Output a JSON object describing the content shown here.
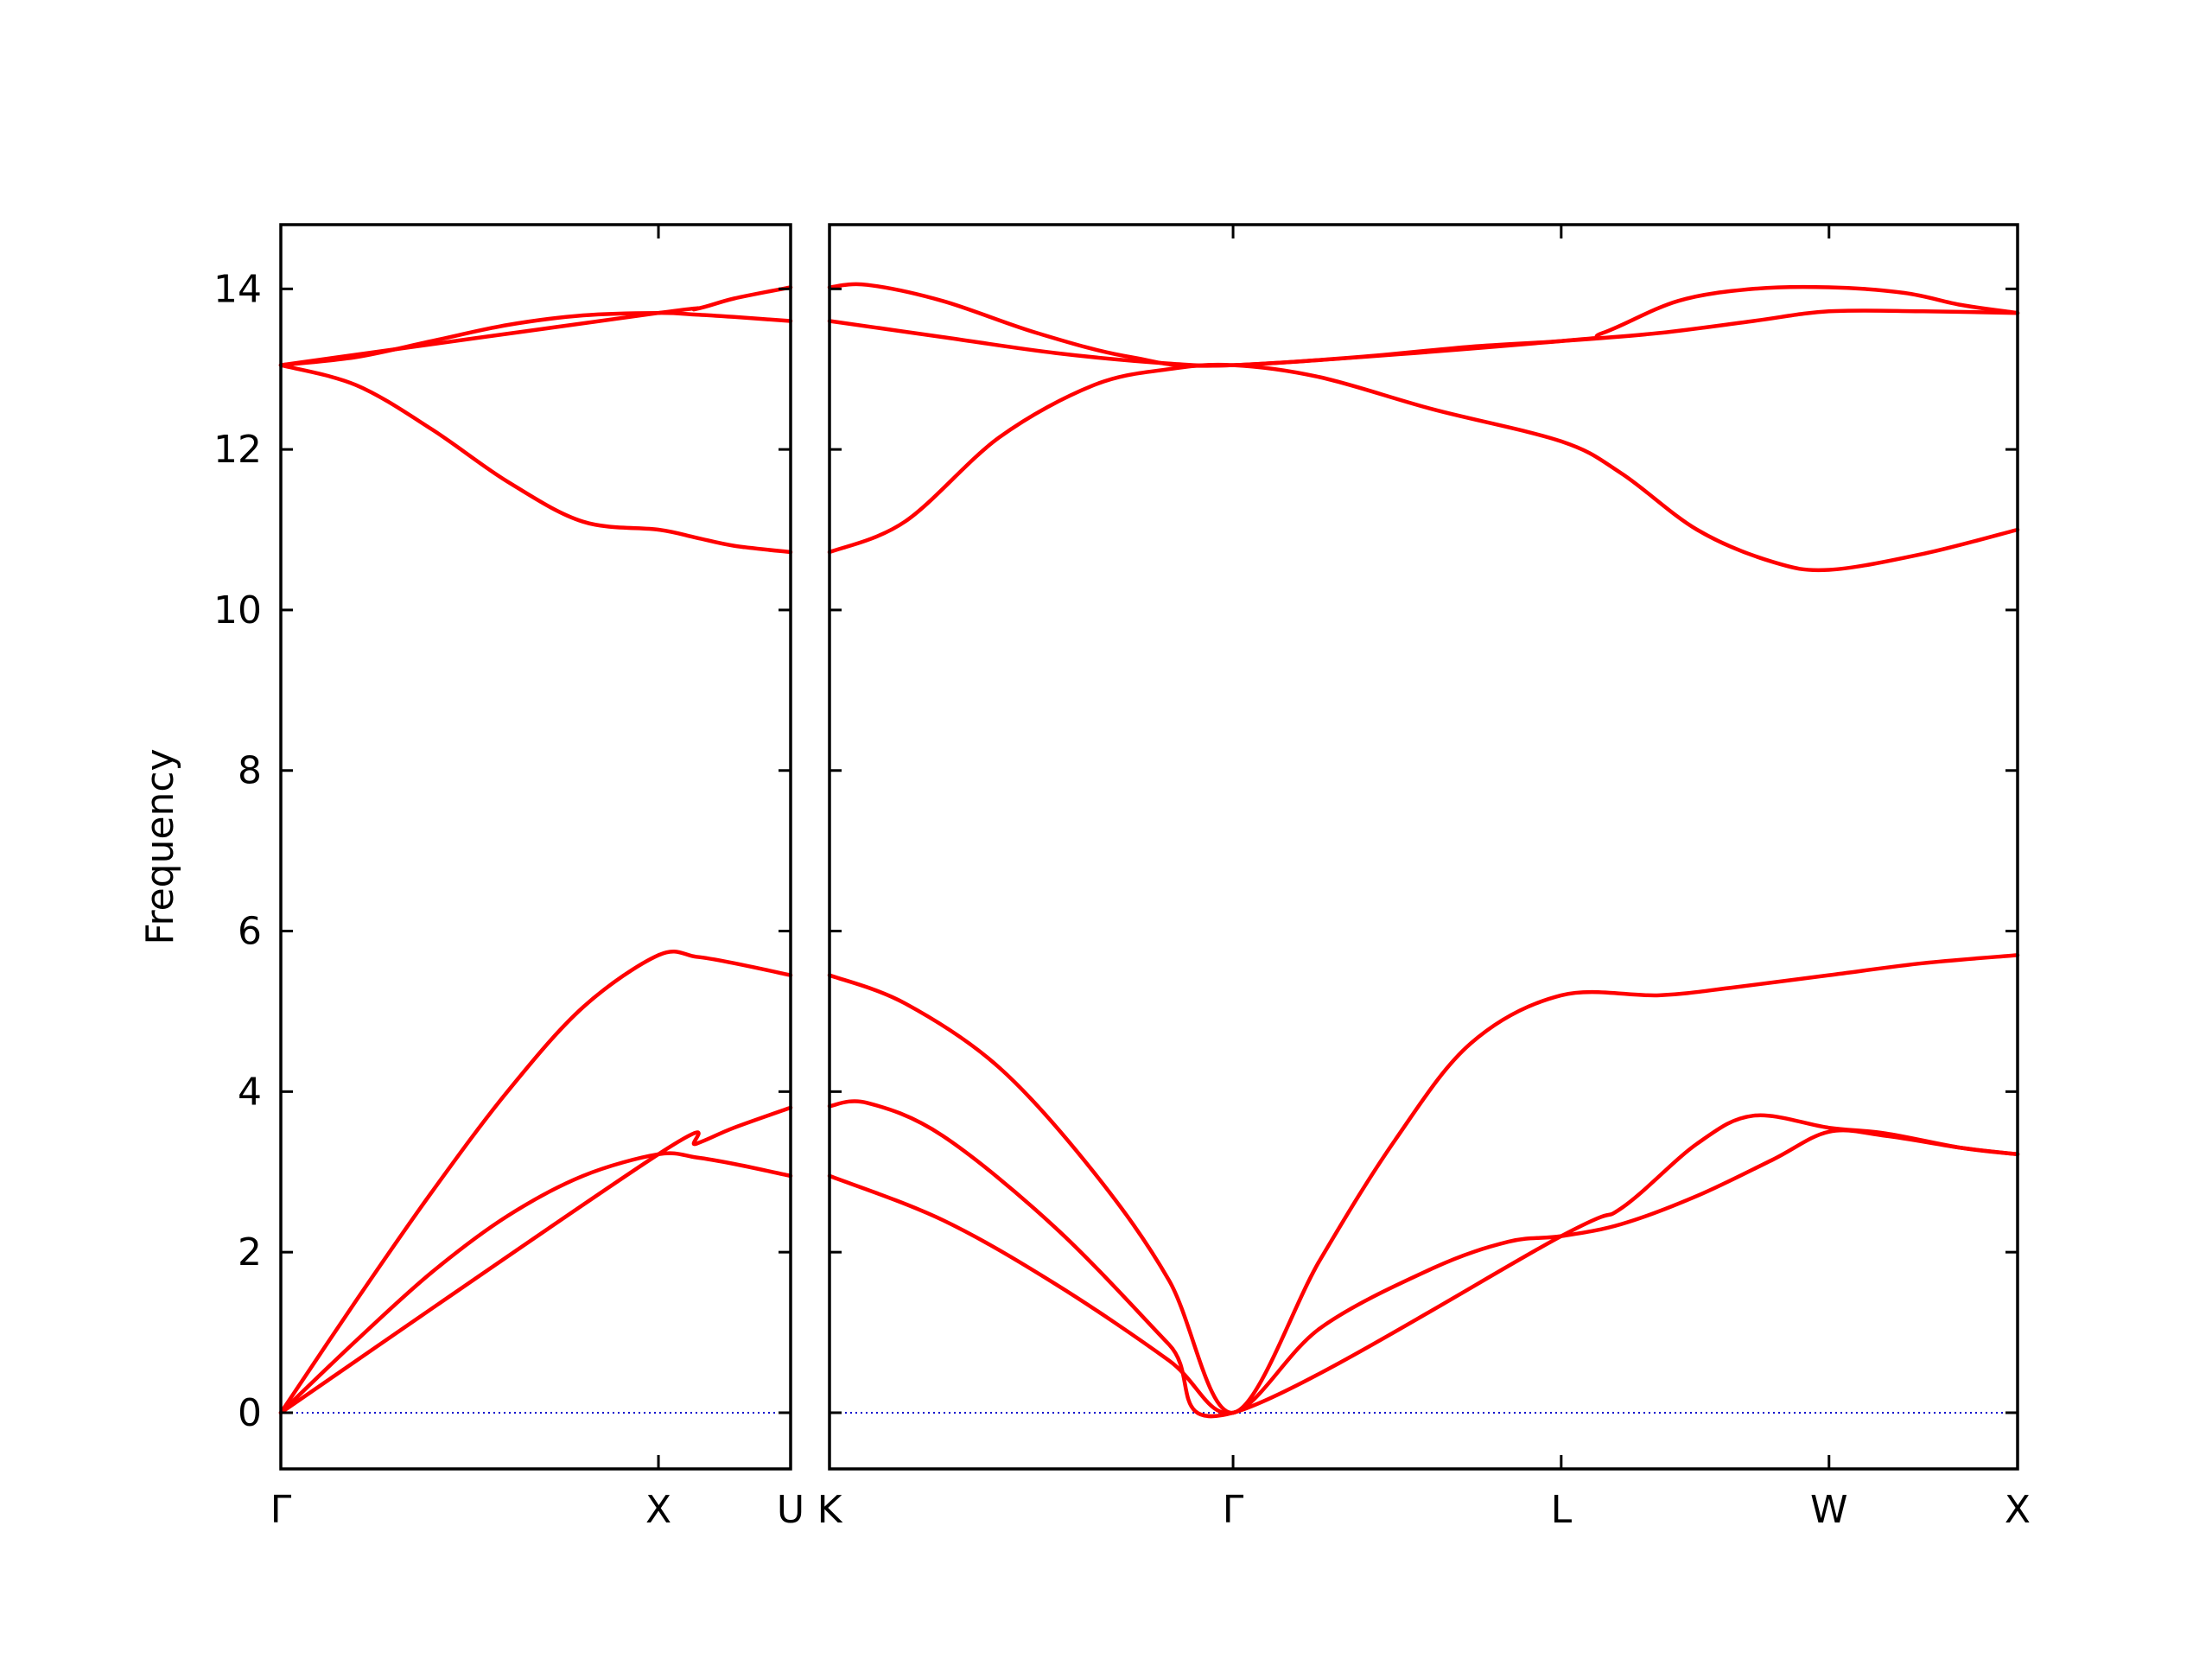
{
  "chart_data": {
    "type": "line",
    "title": "",
    "ylabel": "Frequency",
    "xlabel": "",
    "ylim": [
      -0.7,
      14.8
    ],
    "yticks": [
      0,
      2,
      4,
      6,
      8,
      10,
      12,
      14
    ],
    "grid": false,
    "legend": "none",
    "colors": {
      "band": "#ff0000",
      "zero_line": "#0000cc",
      "axes": "#000000"
    },
    "panels": [
      {
        "name": "Γ-X-U",
        "xlim": [
          0,
          1.35
        ],
        "xticks": [
          {
            "x": 0,
            "label": "Γ"
          },
          {
            "x": 1.0,
            "label": "X"
          },
          {
            "x": 1.35,
            "label": "U"
          }
        ],
        "series": [
          {
            "x": [
              0,
              0.2,
              0.4,
              0.6,
              0.8,
              1.0,
              1.1,
              1.2,
              1.35
            ],
            "y": [
              0,
              0.9,
              1.75,
              2.45,
              2.95,
              3.22,
              3.18,
              3.1,
              2.95
            ]
          },
          {
            "x": [
              0,
              1.0,
              1.1,
              1.2,
              1.35
            ],
            "y": [
              0,
              3.22,
              3.35,
              3.55,
              3.8
            ]
          },
          {
            "x": [
              0,
              0.2,
              0.4,
              0.6,
              0.8,
              1.0,
              1.1,
              1.2,
              1.35
            ],
            "y": [
              0,
              1.4,
              2.75,
              4.0,
              5.05,
              5.7,
              5.68,
              5.6,
              5.45
            ]
          },
          {
            "x": [
              0,
              0.2,
              0.4,
              0.6,
              0.8,
              1.0,
              1.1,
              1.2,
              1.35
            ],
            "y": [
              13.05,
              12.8,
              12.25,
              11.6,
              11.1,
              11.0,
              10.9,
              10.8,
              10.72
            ]
          },
          {
            "x": [
              0,
              0.2,
              0.4,
              0.6,
              0.8,
              1.0,
              1.1,
              1.2,
              1.35
            ],
            "y": [
              13.05,
              13.15,
              13.35,
              13.55,
              13.67,
              13.7,
              13.68,
              13.65,
              13.6
            ]
          },
          {
            "x": [
              0,
              1.0,
              1.1,
              1.2,
              1.35
            ],
            "y": [
              13.05,
              13.7,
              13.75,
              13.88,
              14.02
            ]
          }
        ]
      },
      {
        "name": "K-Γ-L-W-X",
        "xlim": [
          0,
          3.15
        ],
        "xticks": [
          {
            "x": 0,
            "label": "K"
          },
          {
            "x": 1.07,
            "label": "Γ"
          },
          {
            "x": 1.94,
            "label": "L"
          },
          {
            "x": 2.65,
            "label": "W"
          },
          {
            "x": 3.15,
            "label": "X"
          }
        ],
        "series": [
          {
            "x": [
              0,
              0.3,
              0.6,
              0.9,
              1.07,
              1.3,
              1.6,
              1.8,
              1.94,
              2.1,
              2.3,
              2.5,
              2.65,
              2.8,
              3.0,
              3.15
            ],
            "y": [
              2.95,
              2.4,
              1.6,
              0.65,
              0,
              1.05,
              1.8,
              2.13,
              2.2,
              2.35,
              2.7,
              3.15,
              3.5,
              3.45,
              3.3,
              3.22
            ]
          },
          {
            "x": [
              0,
              0.1,
              0.3,
              0.6,
              0.9,
              1.07,
              1.94,
              2.1,
              2.3,
              2.45,
              2.65,
              2.8,
              3.0,
              3.15
            ],
            "y": [
              3.82,
              3.86,
              3.45,
              2.3,
              0.85,
              0,
              2.2,
              2.55,
              3.35,
              3.7,
              3.55,
              3.48,
              3.3,
              3.22
            ]
          },
          {
            "x": [
              0,
              0.2,
              0.45,
              0.7,
              0.9,
              1.07,
              1.3,
              1.5,
              1.7,
              1.94,
              2.2,
              2.4,
              2.65,
              2.9,
              3.15
            ],
            "y": [
              5.45,
              5.1,
              4.3,
              3.0,
              1.65,
              0,
              1.9,
              3.4,
              4.6,
              5.2,
              5.2,
              5.3,
              5.45,
              5.6,
              5.7
            ]
          },
          {
            "x": [
              0,
              0.2,
              0.45,
              0.7,
              0.9,
              1.07,
              1.3,
              1.6,
              1.94,
              2.1,
              2.3,
              2.5,
              2.65,
              2.9,
              3.15
            ],
            "y": [
              10.72,
              11.1,
              12.15,
              12.8,
              13.0,
              13.05,
              12.9,
              12.5,
              12.1,
              11.7,
              11.0,
              10.6,
              10.5,
              10.7,
              11.0
            ]
          },
          {
            "x": [
              0,
              0.3,
              0.6,
              0.9,
              1.07,
              1.4,
              1.7,
              1.94,
              2.2,
              2.45,
              2.65,
              2.9,
              3.15
            ],
            "y": [
              13.6,
              13.4,
              13.2,
              13.07,
              13.05,
              13.15,
              13.28,
              13.35,
              13.45,
              13.6,
              13.72,
              13.72,
              13.7
            ]
          },
          {
            "x": [
              0,
              0.1,
              0.3,
              0.55,
              0.8,
              1.07,
              1.94,
              2.05,
              2.25,
              2.45,
              2.65,
              2.85,
              3.0,
              3.15
            ],
            "y": [
              14.02,
              14.05,
              13.85,
              13.45,
              13.15,
              13.05,
              13.35,
              13.45,
              13.85,
              14.0,
              14.02,
              13.95,
              13.8,
              13.7
            ]
          }
        ]
      }
    ]
  }
}
